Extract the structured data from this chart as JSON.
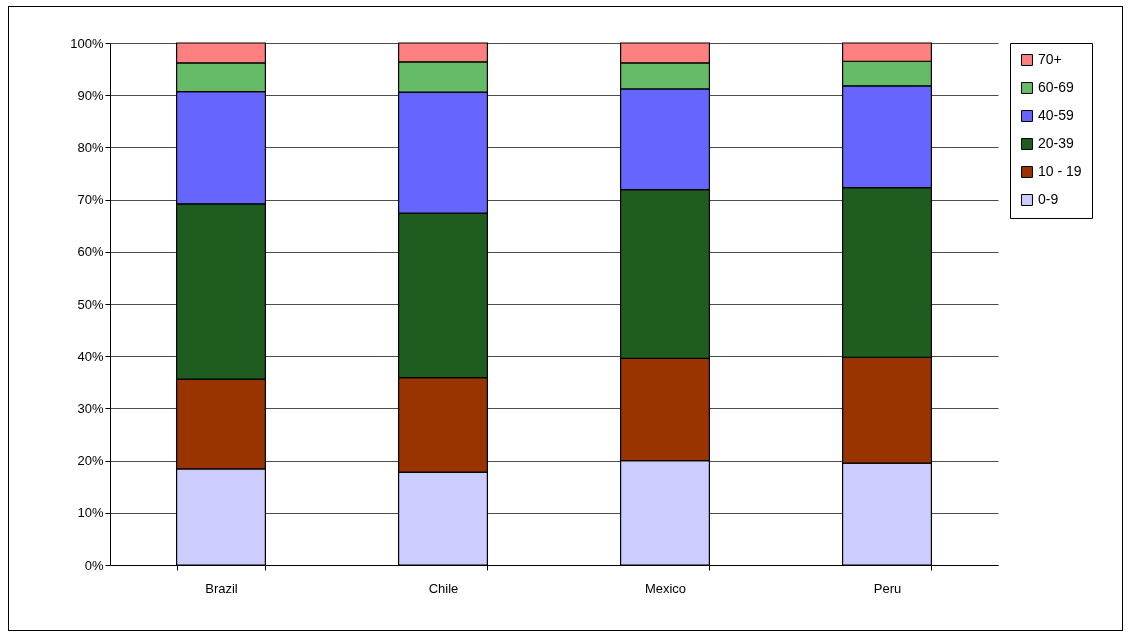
{
  "chart_data": {
    "type": "bar",
    "stacked": true,
    "categories": [
      "Brazil",
      "Chile",
      "Mexico",
      "Peru"
    ],
    "series": [
      {
        "name": "0-9",
        "color": "#ccccff",
        "values": [
          18.4,
          17.8,
          20.0,
          19.5
        ]
      },
      {
        "name": "10 - 19",
        "color": "#993300",
        "values": [
          17.2,
          18.1,
          19.6,
          20.3
        ]
      },
      {
        "name": "20-39",
        "color": "#1f5c1f",
        "values": [
          33.6,
          31.5,
          32.3,
          32.5
        ]
      },
      {
        "name": "40-59",
        "color": "#6666ff",
        "values": [
          21.5,
          23.2,
          19.3,
          19.5
        ]
      },
      {
        "name": "60-69",
        "color": "#66bb66",
        "values": [
          5.5,
          5.8,
          5.0,
          4.7
        ]
      },
      {
        "name": "70+",
        "color": "#ff8080",
        "values": [
          3.8,
          3.6,
          3.8,
          3.5
        ]
      }
    ],
    "ylim": [
      0,
      100
    ],
    "yticks": [
      {
        "value": 0,
        "label": "0%"
      },
      {
        "value": 10,
        "label": "10%"
      },
      {
        "value": 20,
        "label": "20%"
      },
      {
        "value": 30,
        "label": "30%"
      },
      {
        "value": 40,
        "label": "40%"
      },
      {
        "value": 50,
        "label": "50%"
      },
      {
        "value": 60,
        "label": "60%"
      },
      {
        "value": 70,
        "label": "70%"
      },
      {
        "value": 80,
        "label": "80%"
      },
      {
        "value": 90,
        "label": "90%"
      },
      {
        "value": 100,
        "label": "100%"
      }
    ],
    "grid": "y",
    "legend": "right"
  }
}
